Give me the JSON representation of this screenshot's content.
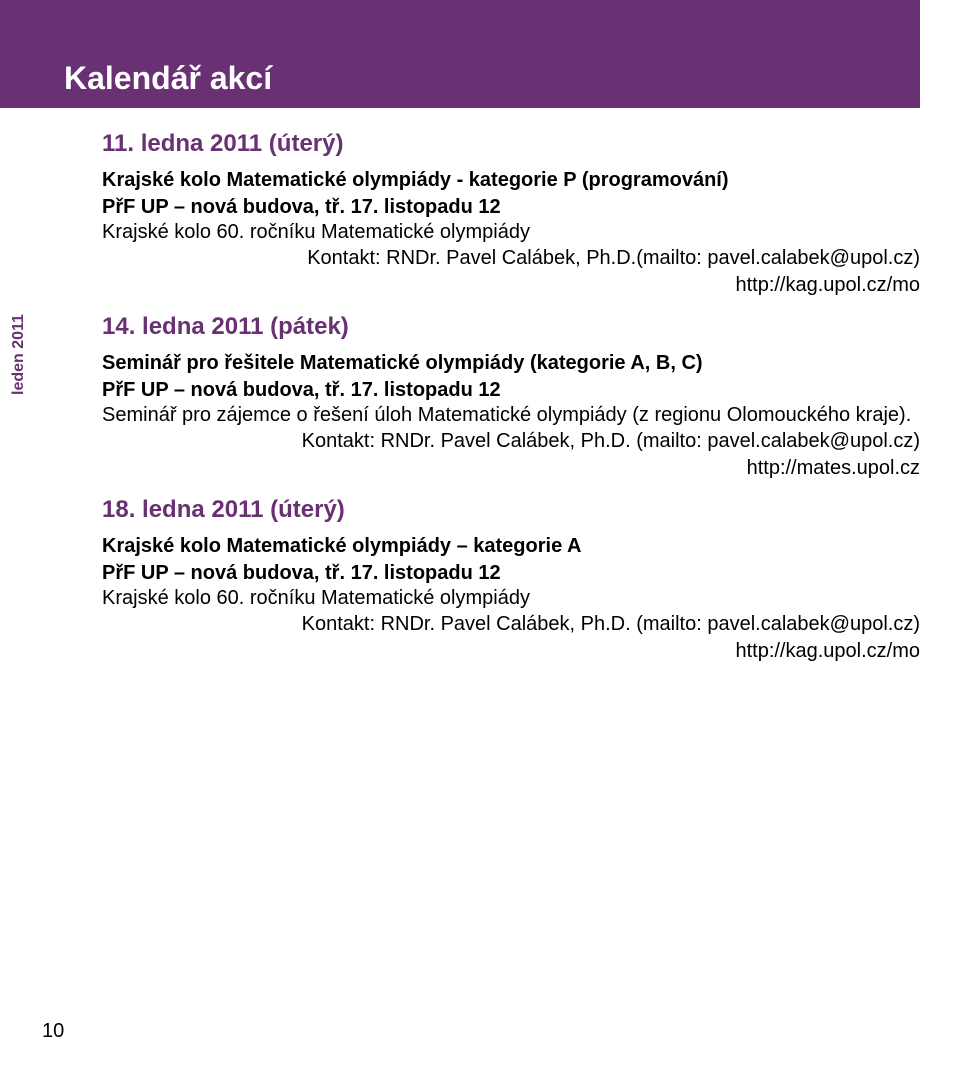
{
  "sidebar_label": "leden 2011",
  "page_title": "Kalendář akcí",
  "page_number": "10",
  "events": [
    {
      "date": "11. ledna 2011 (úterý)",
      "title": "Krajské kolo Matematické olympiády - kategorie P (programování)",
      "location": "PřF UP – nová budova, tř. 17. listopadu 12",
      "body": "Krajské kolo 60. ročníku Matematické olympiády",
      "contact": "Kontakt: RNDr. Pavel Calábek, Ph.D.(mailto: pavel.calabek@upol.cz)",
      "url": "http://kag.upol.cz/mo"
    },
    {
      "date": "14. ledna 2011 (pátek)",
      "title": "Seminář pro řešitele Matematické olympiády (kategorie A, B, C)",
      "location": "PřF UP – nová budova, tř. 17. listopadu 12",
      "body": "Seminář pro zájemce o řešení úloh Matematické olympiády (z regionu Olomouckého kraje).",
      "contact": "Kontakt: RNDr. Pavel Calábek, Ph.D. (mailto: pavel.calabek@upol.cz)",
      "url": "http://mates.upol.cz"
    },
    {
      "date": "18. ledna 2011 (úterý)",
      "title": "Krajské kolo Matematické olympiády – kategorie A",
      "location": "PřF UP – nová budova, tř. 17. listopadu 12",
      "body": "Krajské kolo 60. ročníku Matematické olympiády",
      "contact": "Kontakt: RNDr. Pavel Calábek, Ph.D. (mailto: pavel.calabek@upol.cz)",
      "url": "http://kag.upol.cz/mo"
    }
  ]
}
